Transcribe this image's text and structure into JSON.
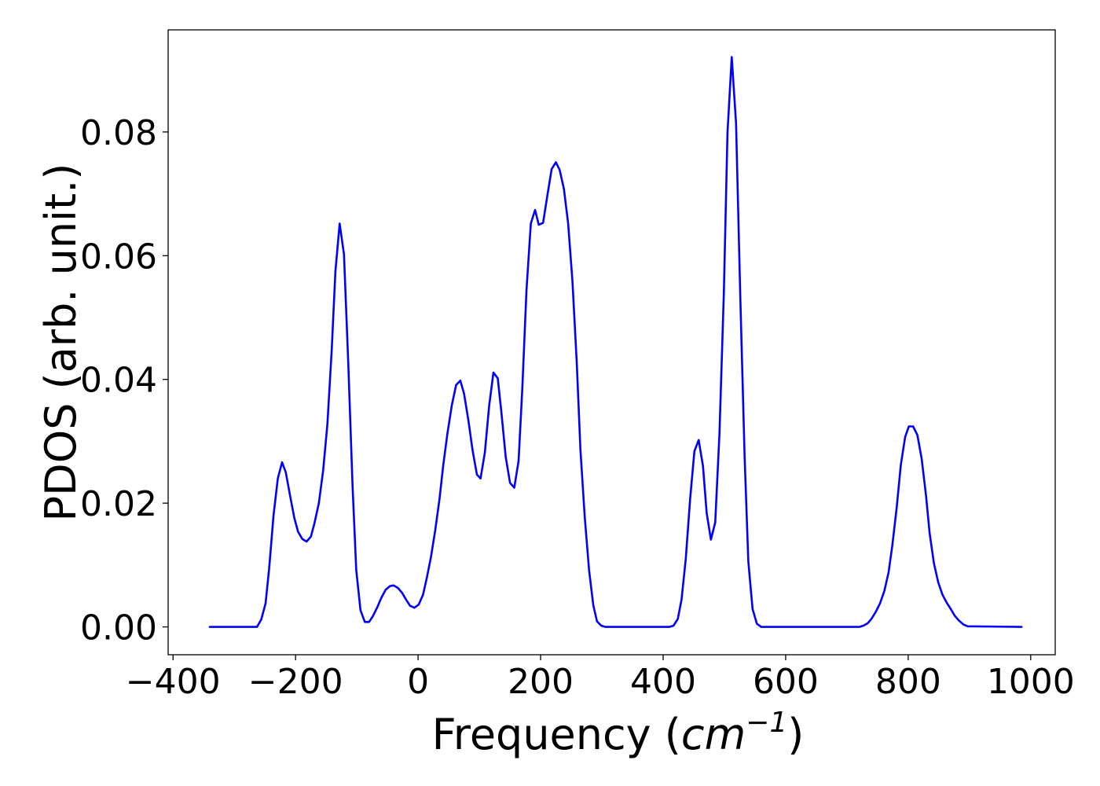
{
  "chart_data": {
    "type": "line",
    "title": "",
    "xlabel": {
      "prefix": "Frequency (",
      "unit_base": "cm",
      "unit_exponent": "−1",
      "suffix": ")"
    },
    "ylabel": "PDOS (arb. unit.)",
    "xlim": [
      -408,
      1040
    ],
    "ylim": [
      -0.0045,
      0.0965
    ],
    "xticks": [
      -400,
      -200,
      0,
      200,
      400,
      600,
      800,
      1000
    ],
    "xtick_labels": [
      "−400",
      "−200",
      "0",
      "200",
      "400",
      "600",
      "800",
      "1000"
    ],
    "yticks": [
      0.0,
      0.02,
      0.04,
      0.06,
      0.08
    ],
    "ytick_labels": [
      "0.00",
      "0.02",
      "0.04",
      "0.06",
      "0.08"
    ],
    "grid": false,
    "legend": false,
    "series": [
      {
        "color": "#0000ff",
        "x": [
          -340,
          -263,
          -256,
          -249,
          -243,
          -236,
          -229,
          -222,
          -216,
          -209,
          -202,
          -196,
          -189,
          -182,
          -175,
          -169,
          -162,
          -155,
          -148,
          -141,
          -135,
          -128,
          -121,
          -114,
          -107,
          -101,
          -94,
          -87,
          -80,
          -74,
          -67,
          -60,
          -53,
          -46,
          -40,
          -33,
          -26,
          -19,
          -13,
          -6,
          1,
          8,
          14,
          21,
          28,
          35,
          41,
          48,
          55,
          62,
          69,
          75,
          82,
          89,
          96,
          102,
          109,
          116,
          123,
          130,
          136,
          143,
          150,
          157,
          164,
          170,
          177,
          184,
          191,
          197,
          204,
          211,
          218,
          225,
          231,
          238,
          245,
          252,
          259,
          265,
          272,
          279,
          286,
          292,
          299,
          306,
          410,
          417,
          424,
          430,
          437,
          444,
          451,
          458,
          465,
          471,
          478,
          485,
          492,
          499,
          505,
          512,
          519,
          526,
          533,
          539,
          546,
          553,
          560,
          567,
          720,
          727,
          734,
          740,
          747,
          754,
          761,
          768,
          774,
          781,
          788,
          795,
          801,
          808,
          815,
          822,
          829,
          835,
          842,
          849,
          856,
          863,
          870,
          876,
          883,
          890,
          897,
          985
        ],
        "y": [
          0.0,
          0.0,
          0.0012,
          0.0038,
          0.0095,
          0.018,
          0.024,
          0.0266,
          0.025,
          0.0212,
          0.0176,
          0.0154,
          0.0142,
          0.0138,
          0.0146,
          0.0168,
          0.02,
          0.0253,
          0.0328,
          0.0448,
          0.0575,
          0.0652,
          0.0602,
          0.0428,
          0.0228,
          0.0092,
          0.0027,
          0.0008,
          0.0008,
          0.0017,
          0.0031,
          0.0047,
          0.006,
          0.0066,
          0.0067,
          0.0063,
          0.0055,
          0.0043,
          0.0034,
          0.0031,
          0.0036,
          0.0052,
          0.0078,
          0.0113,
          0.0156,
          0.0207,
          0.0261,
          0.0313,
          0.0358,
          0.0391,
          0.0398,
          0.0377,
          0.0334,
          0.0285,
          0.0246,
          0.024,
          0.0282,
          0.0358,
          0.0411,
          0.0402,
          0.0346,
          0.0275,
          0.0233,
          0.0225,
          0.0268,
          0.0384,
          0.0545,
          0.0652,
          0.0674,
          0.065,
          0.0653,
          0.0697,
          0.074,
          0.0751,
          0.0739,
          0.0708,
          0.0652,
          0.0558,
          0.0426,
          0.0287,
          0.0178,
          0.0092,
          0.0035,
          0.0009,
          0.0002,
          0.0,
          0.0,
          0.0002,
          0.0013,
          0.0044,
          0.011,
          0.0206,
          0.0284,
          0.0302,
          0.026,
          0.0184,
          0.0141,
          0.0169,
          0.0313,
          0.0537,
          0.0799,
          0.0921,
          0.0814,
          0.0533,
          0.0275,
          0.0106,
          0.0029,
          0.0005,
          0.0,
          0.0,
          0.0,
          0.0002,
          0.0006,
          0.0013,
          0.0024,
          0.0038,
          0.0058,
          0.0088,
          0.0131,
          0.0191,
          0.0262,
          0.0307,
          0.0324,
          0.0324,
          0.031,
          0.0272,
          0.0213,
          0.0151,
          0.0103,
          0.0072,
          0.0052,
          0.0039,
          0.0028,
          0.0018,
          0.001,
          0.0004,
          0.0001,
          0.0
        ]
      }
    ]
  }
}
